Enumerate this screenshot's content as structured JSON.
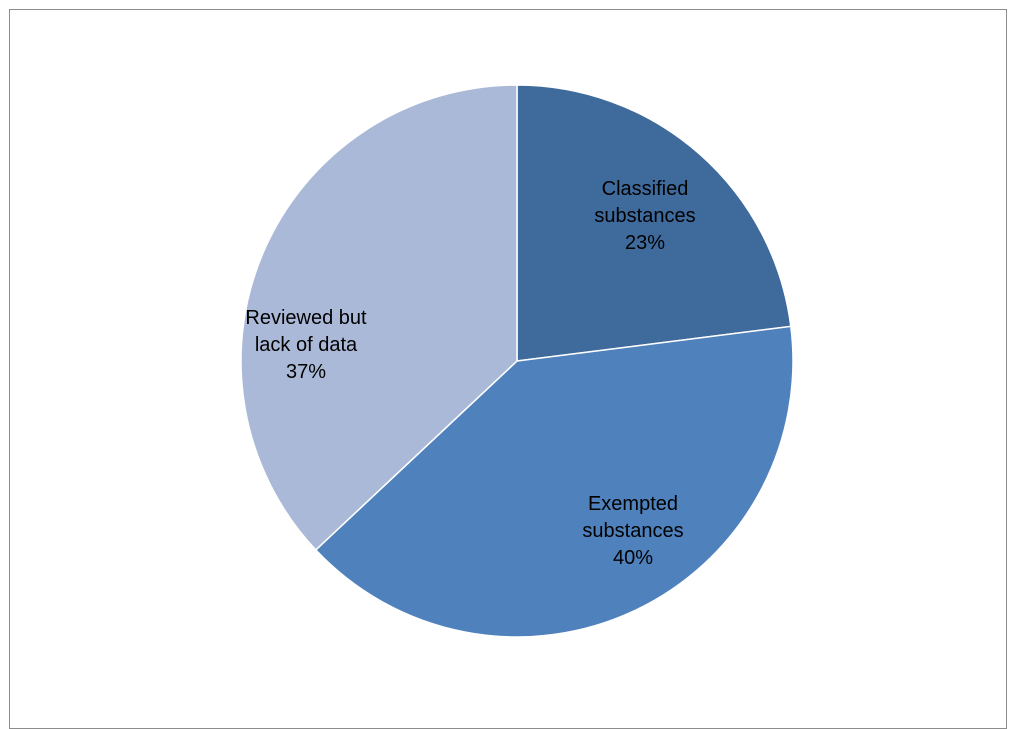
{
  "chart_data": {
    "type": "pie",
    "categories": [
      "Classified substances",
      "Exempted substances",
      "Reviewed but lack of data"
    ],
    "values": [
      23,
      40,
      37
    ],
    "unit": "%",
    "colors": [
      "#3F6A9C",
      "#4F81BD",
      "#AAB9D7"
    ],
    "labels": [
      {
        "lines": [
          "Classified",
          "substances"
        ],
        "pct": "23%"
      },
      {
        "lines": [
          "Exempted",
          "substances"
        ],
        "pct": "40%"
      },
      {
        "lines": [
          "Reviewed but",
          "lack of data"
        ],
        "pct": "37%"
      }
    ],
    "start": "12 o'clock",
    "direction": "clockwise",
    "legend": "none"
  }
}
